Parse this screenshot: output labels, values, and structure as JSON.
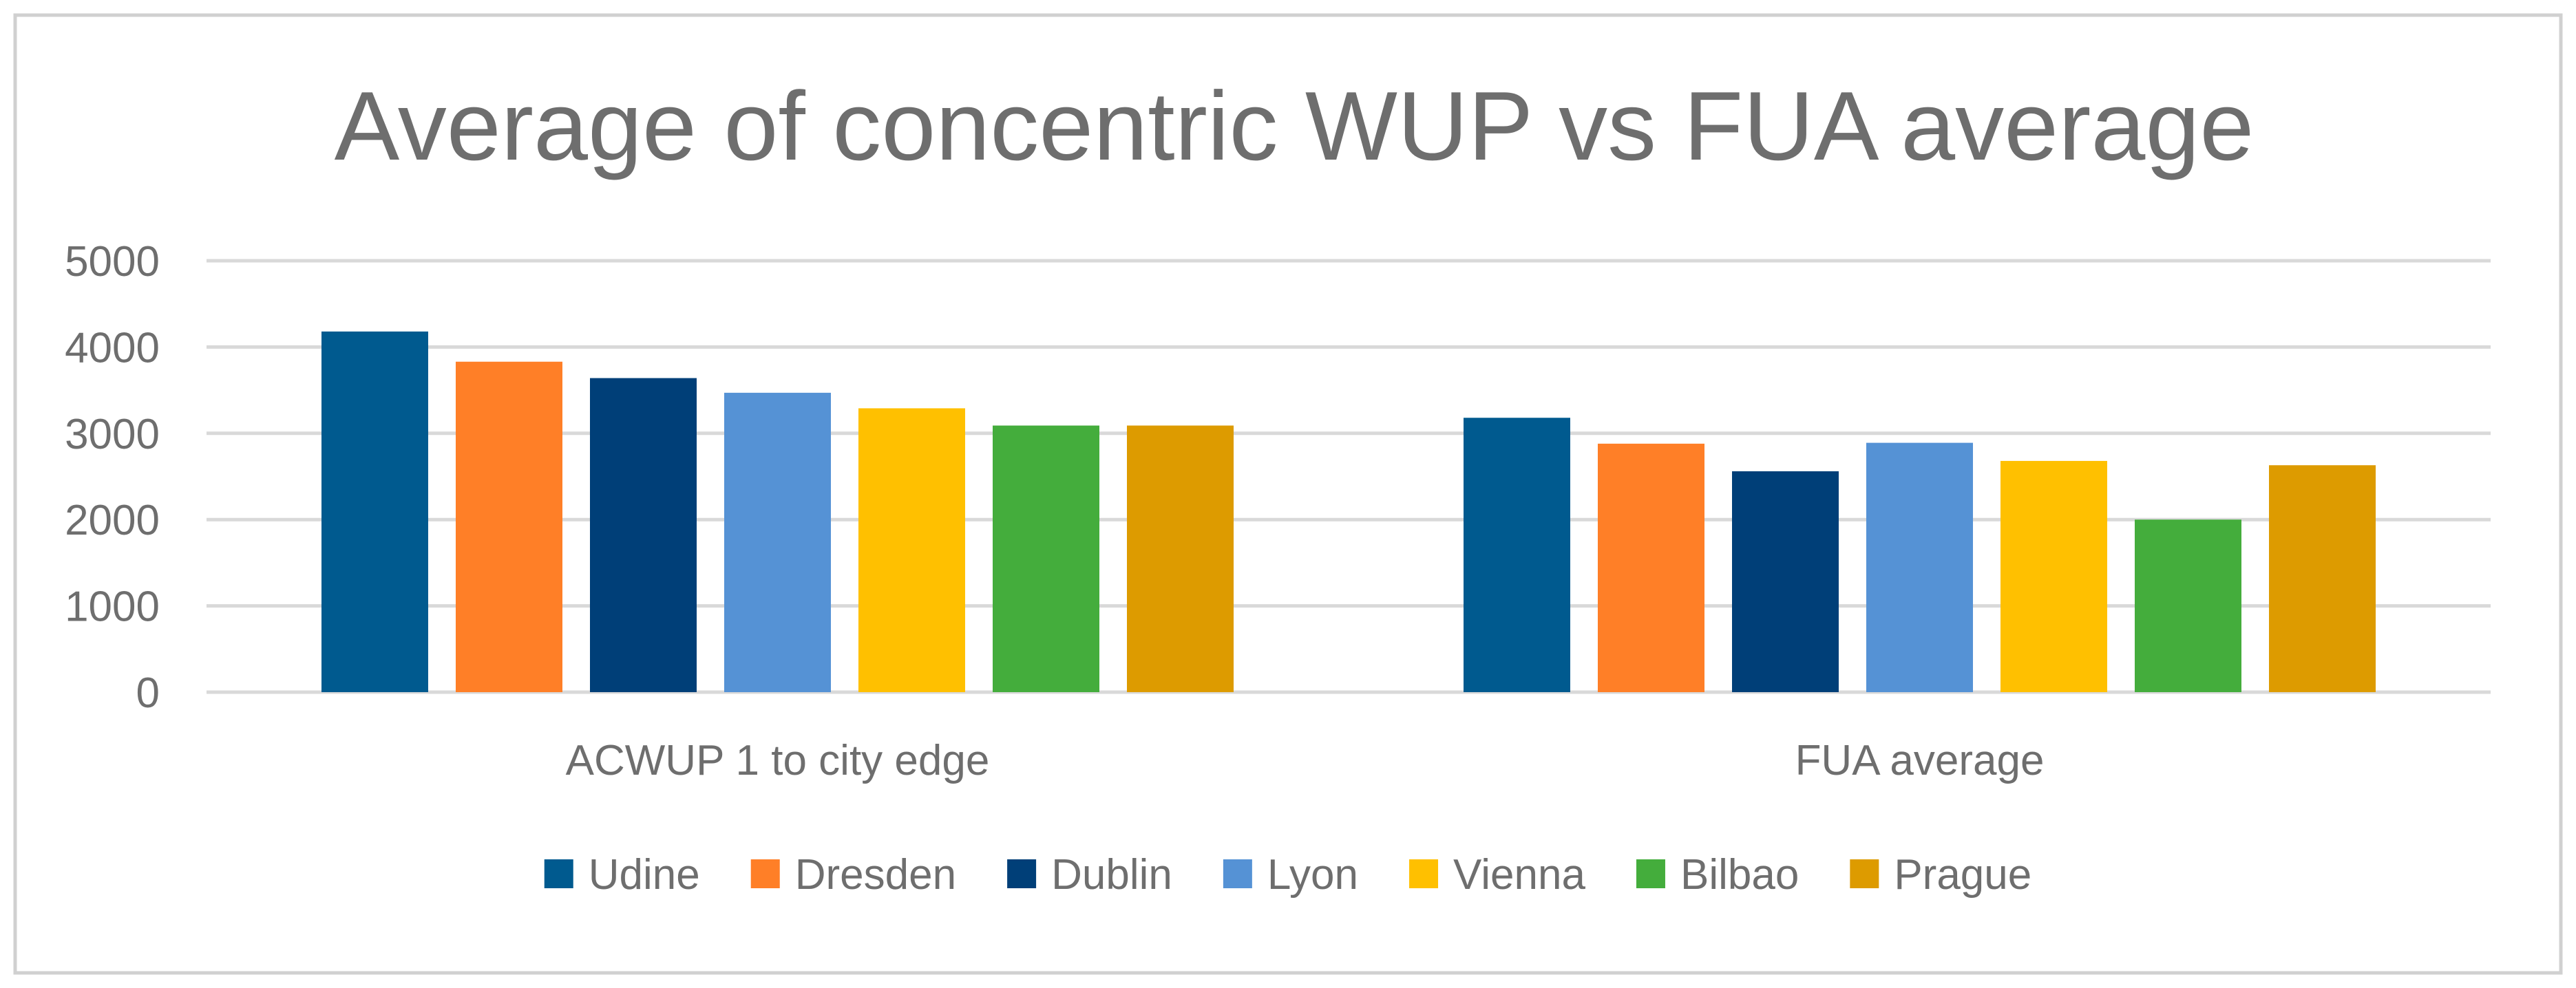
{
  "chart_data": {
    "type": "bar",
    "title": "Average of concentric WUP vs FUA average",
    "xlabel": "",
    "ylabel": "",
    "categories": [
      "ACWUP 1 to city edge",
      "FUA average"
    ],
    "ylim": [
      0,
      5000
    ],
    "yticks": [
      0,
      1000,
      2000,
      3000,
      4000,
      5000
    ],
    "grid": true,
    "legend_position": "bottom",
    "series": [
      {
        "name": "Udine",
        "color": "#005A8F",
        "values": [
          4180,
          3180
        ]
      },
      {
        "name": "Dresden",
        "color": "#FF7F27",
        "values": [
          3830,
          2880
        ]
      },
      {
        "name": "Dublin",
        "color": "#003F78",
        "values": [
          3640,
          2560
        ]
      },
      {
        "name": "Lyon",
        "color": "#5592D5",
        "values": [
          3470,
          2890
        ]
      },
      {
        "name": "Vienna",
        "color": "#FFC000",
        "values": [
          3290,
          2680
        ]
      },
      {
        "name": "Bilbao",
        "color": "#44AD3C",
        "values": [
          3090,
          2000
        ]
      },
      {
        "name": "Prague",
        "color": "#DD9B00",
        "values": [
          3090,
          2630
        ]
      }
    ],
    "colors": {
      "text": "#6E6E6E",
      "grid": "#D9D9D9",
      "border": "#D0D0D0",
      "background": "#FFFFFF"
    }
  }
}
